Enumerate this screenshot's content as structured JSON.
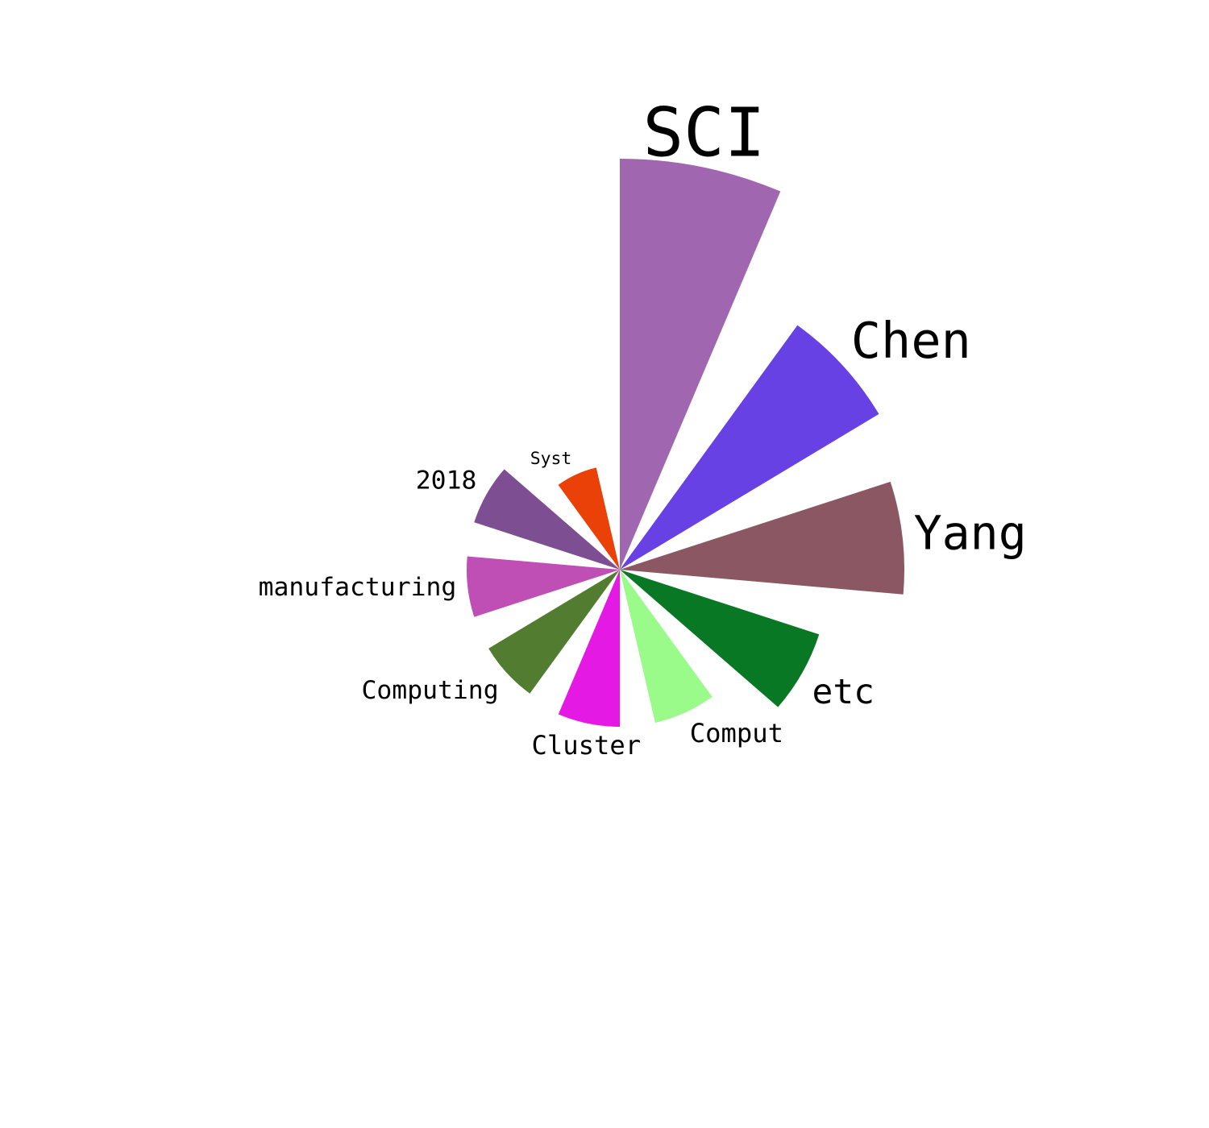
{
  "chart_data": {
    "type": "rose",
    "series": [
      {
        "label": "SCI",
        "value": 510,
        "color": "#a066b0"
      },
      {
        "label": "Chen",
        "value": 375,
        "color": "#6741e4"
      },
      {
        "label": "Yang",
        "value": 353,
        "color": "#8b5763"
      },
      {
        "label": "etc",
        "value": 260,
        "color": "#087824"
      },
      {
        "label": "Comput",
        "value": 195,
        "color": "#9afb8a"
      },
      {
        "label": "Cluster",
        "value": 195,
        "color": "#e41ae4"
      },
      {
        "label": "Computing",
        "value": 190,
        "color": "#527d30"
      },
      {
        "label": "manufacturing",
        "value": 190,
        "color": "#bf4fb4"
      },
      {
        "label": "2018",
        "value": 190,
        "color": "#7d4f92"
      },
      {
        "label": "Syst",
        "value": 130,
        "color": "#ea4108"
      }
    ]
  }
}
